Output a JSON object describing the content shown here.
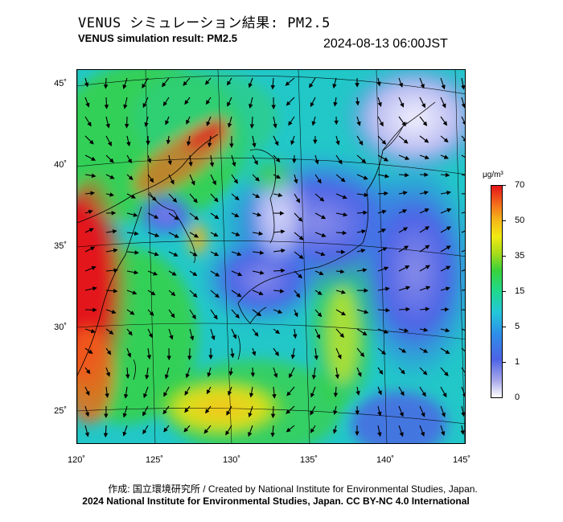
{
  "header": {
    "title_jp": "VENUS シミュレーション結果: PM2.5",
    "title_en": "VENUS simulation result: PM2.5",
    "timestamp": "2024-08-13 06:00JST"
  },
  "map": {
    "lat_labels": [
      "45˚",
      "40˚",
      "35˚",
      "30˚",
      "25˚"
    ],
    "lon_labels": [
      "120˚",
      "125˚",
      "130˚",
      "135˚",
      "140˚",
      "145˚"
    ],
    "colorbar": {
      "unit": "μg/m³",
      "ticks": [
        "70",
        "50",
        "35",
        "15",
        "5",
        "1",
        "0"
      ],
      "colors": [
        "#ffffff",
        "#4d63e6",
        "#24c6da",
        "#3ad23b",
        "#f1ea12",
        "#f3661c",
        "#e3141a"
      ]
    }
  },
  "footer": {
    "credit_jp": "作成: 国立環境研究所 / Created by National Institute for Environmental Studies, Japan.",
    "copyright": "2024 National Institute for Environmental Studies, Japan. CC BY-NC 4.0 International"
  }
}
